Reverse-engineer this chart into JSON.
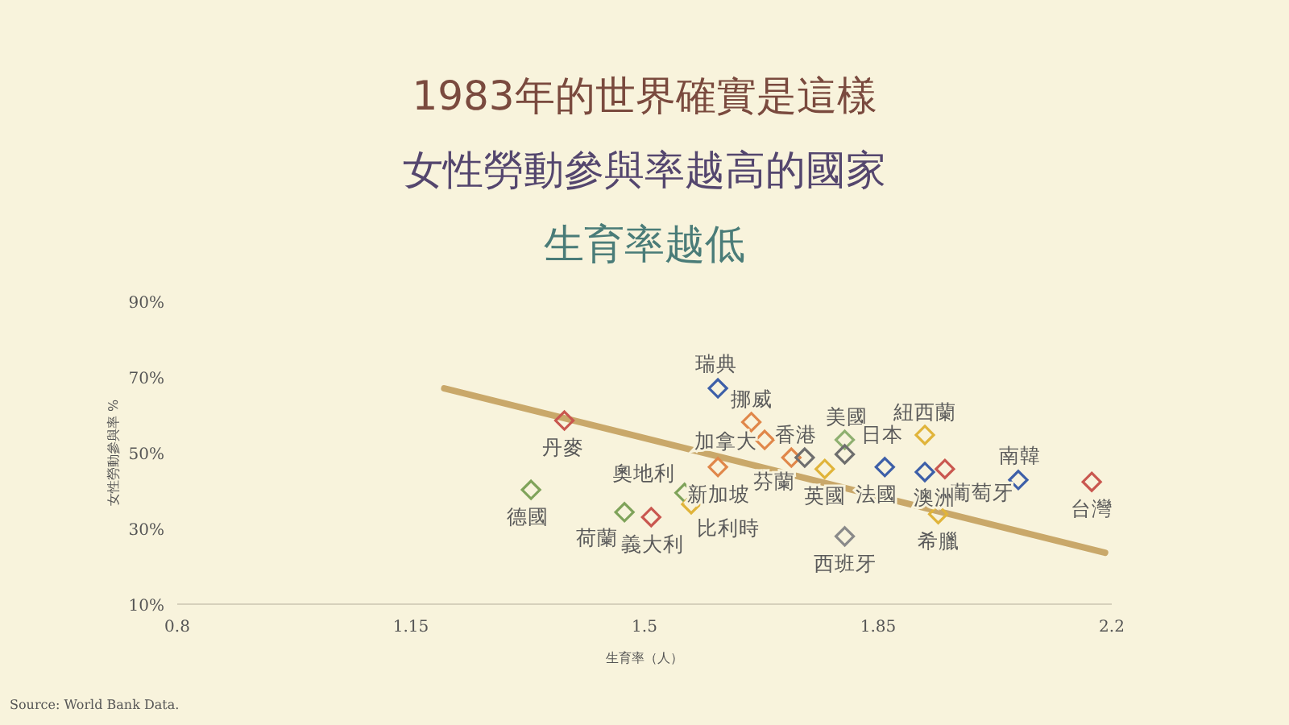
{
  "chart_data": {
    "type": "scatter",
    "title": "1983年的世界確實是這樣",
    "subtitle": "女性勞動參與率越高的國家生育率越低",
    "xlabel": "生育率（人）",
    "ylabel": "女性勞動參與率 %",
    "xlim": [
      0.8,
      2.2
    ],
    "xticks": [
      0.8,
      1.15,
      1.5,
      1.85,
      2.2
    ],
    "ylim": [
      10,
      90
    ],
    "yticks": [
      {
        "value": 10,
        "label": "10%"
      },
      {
        "value": 30,
        "label": "30%"
      },
      {
        "value": 50,
        "label": "50%"
      },
      {
        "value": 70,
        "label": "70%"
      },
      {
        "value": 90,
        "label": "90%"
      }
    ],
    "grid": false,
    "series": [
      {
        "marker": "diamond",
        "x": [
          1.38,
          1.33,
          1.61,
          1.66,
          1.68,
          1.72,
          1.74,
          1.77,
          1.8,
          1.8,
          1.86,
          1.92,
          1.92,
          1.95,
          2.06,
          2.17,
          1.94,
          1.8,
          1.61,
          1.56,
          1.57,
          1.47,
          1.51
        ],
        "values": [
          58.5,
          40.2,
          67.0,
          58.1,
          53.4,
          48.7,
          48.7,
          45.7,
          53.4,
          49.6,
          46.2,
          54.7,
          44.9,
          45.7,
          42.8,
          42.3,
          33.8,
          27.9,
          46.2,
          39.4,
          36.4,
          34.3,
          33.0
        ],
        "colors": [
          "#c9574f",
          "#7fa35a",
          "#3d5fa8",
          "#e0874a",
          "#e0874a",
          "#e0874a",
          "#6e6e6e",
          "#e0b43a",
          "#8fb070",
          "#6e6e6e",
          "#3d5fa8",
          "#e0b43a",
          "#3d5fa8",
          "#c9574f",
          "#3d5fa8",
          "#c9574f",
          "#e0b43a",
          "#8a8a8a",
          "#e0874a",
          "#7fa35a",
          "#e0b43a",
          "#7fa35a",
          "#c9574f"
        ]
      },
      {
        "type": "line",
        "x": [
          1.2,
          2.19
        ],
        "values": [
          67.0,
          23.6
        ],
        "color": "#c9a86a"
      }
    ],
    "annotations": [
      {
        "text": "瑞典",
        "x": 1.61,
        "y": 67.0
      },
      {
        "text": "挪威",
        "x": 1.66,
        "y": 58.1
      },
      {
        "text": "加拿大",
        "x": 1.68,
        "y": 53.4
      },
      {
        "text": "香港",
        "x": 1.72,
        "y": 48.7
      },
      {
        "text": "美國",
        "x": 1.8,
        "y": 53.4
      },
      {
        "text": "日本",
        "x": 1.8,
        "y": 49.6
      },
      {
        "text": "紐西蘭",
        "x": 1.92,
        "y": 54.7
      },
      {
        "text": "南韓",
        "x": 2.06,
        "y": 42.8
      },
      {
        "text": "台灣",
        "x": 2.17,
        "y": 42.3
      },
      {
        "text": "葡萄牙",
        "x": 1.95,
        "y": 45.7
      },
      {
        "text": "澳洲",
        "x": 1.92,
        "y": 44.9
      },
      {
        "text": "法國",
        "x": 1.86,
        "y": 46.2
      },
      {
        "text": "希臘",
        "x": 1.94,
        "y": 33.8
      },
      {
        "text": "西班牙",
        "x": 1.8,
        "y": 27.9
      },
      {
        "text": "英國",
        "x": 1.77,
        "y": 45.7
      },
      {
        "text": "芬蘭",
        "x": 1.74,
        "y": 48.7
      },
      {
        "text": "比利時",
        "x": 1.57,
        "y": 36.4
      },
      {
        "text": "新加坡",
        "x": 1.56,
        "y": 39.4
      },
      {
        "text": "奧地利",
        "x": 1.61,
        "y": 46.2
      },
      {
        "text": "荷蘭",
        "x": 1.47,
        "y": 34.3
      },
      {
        "text": "義大利",
        "x": 1.51,
        "y": 33.0
      },
      {
        "text": "德國",
        "x": 1.33,
        "y": 40.2
      },
      {
        "text": "丹麥",
        "x": 1.38,
        "y": 58.5
      },
      "Source: World Bank Data."
    ]
  }
}
